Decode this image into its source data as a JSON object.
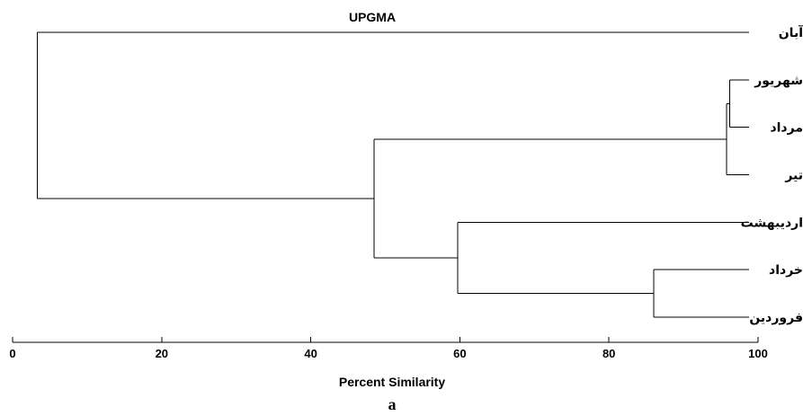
{
  "chart_data": {
    "type": "dendrogram",
    "title": "UPGMA",
    "xlabel": "Percent Similarity",
    "xlim": [
      0,
      100
    ],
    "xticks": [
      0,
      20,
      40,
      60,
      80,
      100
    ],
    "leaves": [
      "آبان",
      "شهریور",
      "مرداد",
      "تیر",
      "اردیبهشت",
      "خرداد",
      "فروردین"
    ],
    "nodes": [
      {
        "id": "n1",
        "children": [
          "شهریور",
          "مرداد"
        ],
        "similarity": 96.2
      },
      {
        "id": "n2",
        "children": [
          "n1",
          "تیر"
        ],
        "similarity": 95.8
      },
      {
        "id": "n3",
        "children": [
          "خرداد",
          "فروردین"
        ],
        "similarity": 86.0
      },
      {
        "id": "n4",
        "children": [
          "اردیبهشت",
          "n3"
        ],
        "similarity": 59.7
      },
      {
        "id": "n5",
        "children": [
          "n2",
          "n4"
        ],
        "similarity": 48.5
      },
      {
        "id": "n6",
        "children": [
          "آبان",
          "n5"
        ],
        "similarity": 3.3
      }
    ],
    "panel_label": "a"
  }
}
